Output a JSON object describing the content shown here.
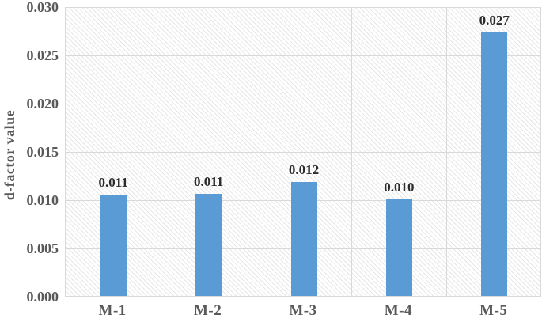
{
  "chart_data": {
    "type": "bar",
    "title": "",
    "categories": [
      "M-1",
      "M-2",
      "M-3",
      "M-4",
      "M-5"
    ],
    "values": [
      0.011,
      0.011,
      0.012,
      0.01,
      0.027
    ],
    "data_labels": [
      "0.011",
      "0.011",
      "0.012",
      "0.010",
      "0.027"
    ],
    "drawn_values": [
      0.0105,
      0.0106,
      0.0118,
      0.01,
      0.0273
    ],
    "xlabel": "",
    "ylabel": "d-factor value",
    "ylim": [
      0,
      0.03
    ],
    "ytick_labels": [
      "0.000",
      "0.005",
      "0.010",
      "0.015",
      "0.020",
      "0.025",
      "0.030"
    ],
    "grid": true,
    "legend": false,
    "plot_background": "hatched-diagonal",
    "colors": {
      "bar": "#5B9BD5",
      "gridline": "#D9D9D9",
      "plot_border": "#D9D9D9",
      "axis_text": "#595959",
      "data_label_text": "#2b2b2b",
      "hatch_line": "#e6e6e6",
      "background": "#FFFFFF"
    }
  }
}
